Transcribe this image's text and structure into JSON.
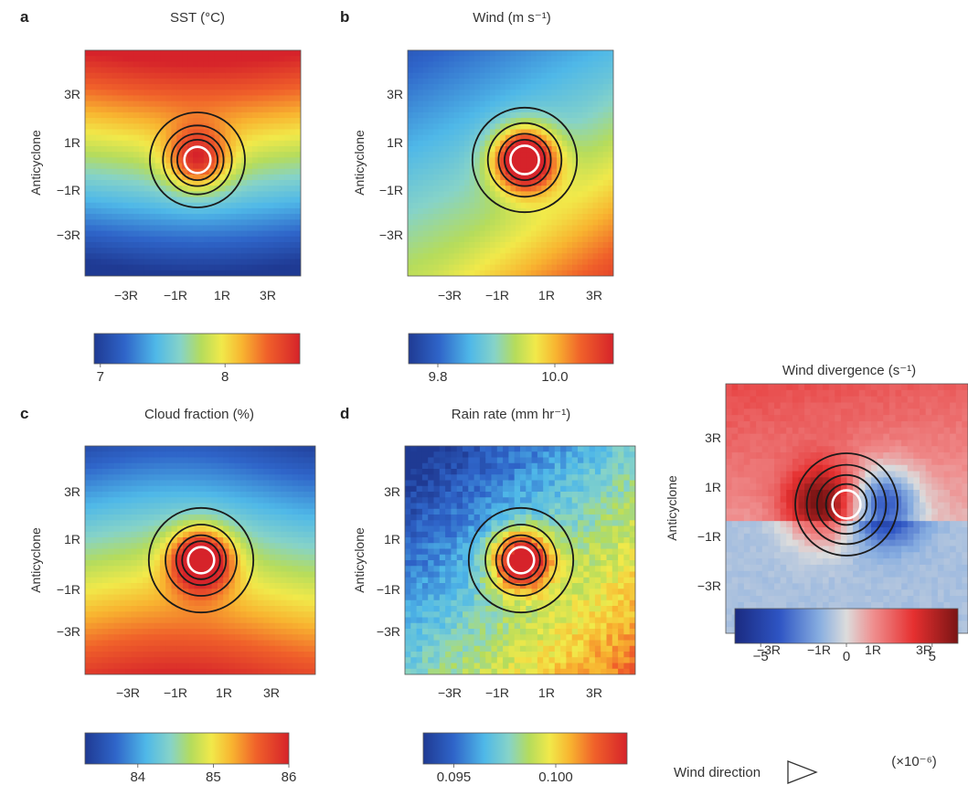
{
  "chart_data": [
    {
      "id": "a",
      "type": "heatmap",
      "panel_label": "a",
      "title": "SST (°C)",
      "ylabel": "Anticyclone",
      "x_ticks": [
        "−3R",
        "−1R",
        "1R",
        "3R"
      ],
      "y_ticks": [
        "3R",
        "1R",
        "−1R",
        "−3R"
      ],
      "field": {
        "kind": "ns_gradient",
        "north_value": 8.55,
        "south_value": 7.0,
        "center_anomaly": 0.6
      },
      "colorbar": {
        "min": 6.95,
        "max": 8.6,
        "tick_values": [
          7,
          8
        ],
        "tick_labels": [
          "7",
          "8"
        ]
      },
      "contours": {
        "radii_R": [
          2.0,
          1.45,
          1.1,
          0.85
        ],
        "inner_white_radius_R": 0.55
      }
    },
    {
      "id": "b",
      "type": "heatmap",
      "panel_label": "b",
      "title": "Wind (m s⁻¹)",
      "ylabel": "Anticyclone",
      "x_ticks": [
        "−3R",
        "−1R",
        "1R",
        "3R"
      ],
      "y_ticks": [
        "3R",
        "1R",
        "−1R",
        "−3R"
      ],
      "field": {
        "kind": "nw_to_se",
        "min_value": 9.8,
        "max_value": 10.1,
        "center_anomaly": 0.35
      },
      "colorbar": {
        "min": 9.75,
        "max": 10.1,
        "tick_values": [
          9.8,
          10.0
        ],
        "tick_labels": [
          "9.8",
          "10.0"
        ]
      },
      "contours": {
        "radii_R": [
          2.2,
          1.55,
          1.1,
          0.85
        ],
        "inner_white_radius_R": 0.6
      }
    },
    {
      "id": "c",
      "type": "heatmap",
      "panel_label": "c",
      "title": "Cloud fraction (%)",
      "ylabel": "Anticyclone",
      "x_ticks": [
        "−3R",
        "−1R",
        "1R",
        "3R"
      ],
      "y_ticks": [
        "3R",
        "1R",
        "−1R",
        "−3R"
      ],
      "field": {
        "kind": "ns_gradient_reverse",
        "north_value": 83.3,
        "south_value": 85.6,
        "center_anomaly": 1.4
      },
      "colorbar": {
        "min": 83.3,
        "max": 86.0,
        "tick_values": [
          84,
          85,
          86
        ],
        "tick_labels": [
          "84",
          "85",
          "86"
        ]
      },
      "contours": {
        "radii_R": [
          2.2,
          1.5,
          1.05,
          0.8
        ],
        "inner_white_radius_R": 0.55
      }
    },
    {
      "id": "d",
      "type": "heatmap",
      "panel_label": "d",
      "title": "Rain rate (mm hr⁻¹)",
      "ylabel": "Anticyclone",
      "x_ticks": [
        "−3R",
        "−1R",
        "1R",
        "3R"
      ],
      "y_ticks": [
        "3R",
        "1R",
        "−1R",
        "−3R"
      ],
      "field": {
        "kind": "nw_to_se_noisy",
        "min_value": 0.0935,
        "max_value": 0.1035,
        "center_anomaly": 0.008
      },
      "colorbar": {
        "min": 0.0935,
        "max": 0.1035,
        "tick_values": [
          0.095,
          0.1
        ],
        "tick_labels": [
          "0.095",
          "0.100"
        ]
      },
      "contours": {
        "radii_R": [
          2.2,
          1.5,
          1.05,
          0.8
        ],
        "inner_white_radius_R": 0.55
      }
    },
    {
      "id": "e",
      "type": "heatmap",
      "panel_label": "",
      "title": "Wind divergence (s⁻¹)",
      "ylabel": "Anticyclone",
      "x_ticks": [
        "−3R",
        "−1R",
        "1R",
        "3R"
      ],
      "y_ticks": [
        "3R",
        "1R",
        "−1R",
        "−3R"
      ],
      "field": {
        "kind": "dipole",
        "min_value": -5,
        "max_value": 5
      },
      "colorbar": {
        "min": -6.5,
        "max": 6.5,
        "tick_values": [
          -5,
          0,
          5
        ],
        "tick_labels": [
          "−5",
          "0",
          "5"
        ],
        "scale_label": "(×10⁻⁶)"
      },
      "contours": {
        "radii_R": [
          2.0,
          1.55,
          1.15,
          0.8
        ],
        "inner_white_radius_R": 0.55
      },
      "annotation": {
        "label": "Wind direction",
        "icon": "right-arrow-icon"
      }
    }
  ]
}
